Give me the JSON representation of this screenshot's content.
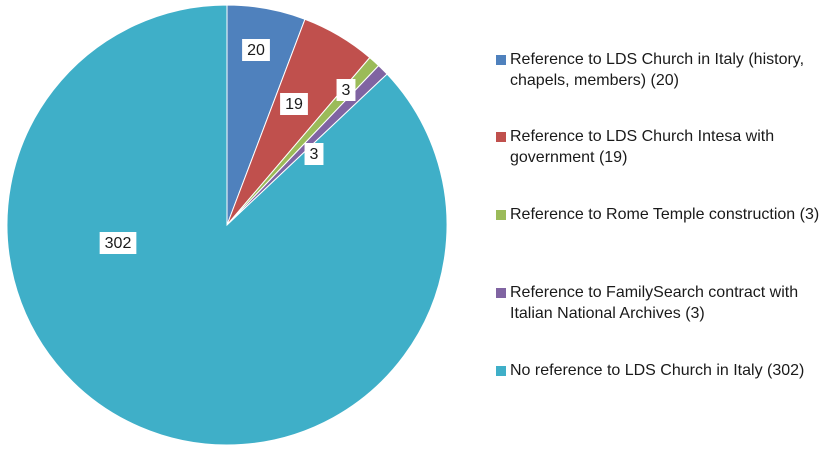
{
  "chart_data": {
    "type": "pie",
    "categories": [
      "Reference to LDS Church in Italy (history, chapels, members) (20)",
      "Reference to LDS Church Intesa with government (19)",
      "Reference to Rome Temple construction (3)",
      "Reference to FamilySearch contract with Italian National Archives (3)",
      "No reference to LDS Church in Italy (302)"
    ],
    "values": [
      20,
      19,
      3,
      3,
      302
    ],
    "colors": [
      "#4f81bd",
      "#c0504d",
      "#9bbb59",
      "#8064a2",
      "#3fafc8"
    ],
    "legend": "right"
  }
}
